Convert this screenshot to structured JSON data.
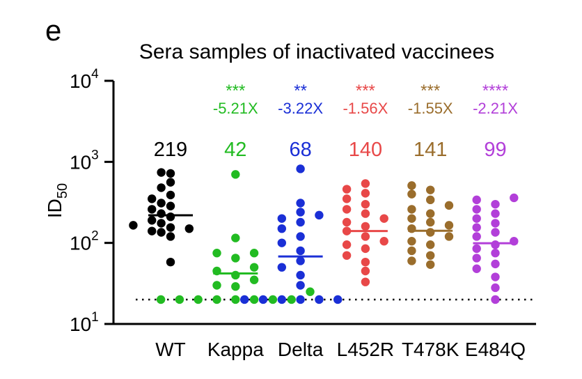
{
  "panel_label": "e",
  "chart_data": {
    "type": "scatter",
    "subtype": "dot-plot with geometric mean lines",
    "title": "Sera samples of inactivated vaccinees",
    "ylabel": "ID50",
    "ylabel_main": "ID",
    "ylabel_sub": "50",
    "yscale": "log",
    "ylim": [
      10,
      10000
    ],
    "yticks": [
      {
        "value": 10,
        "base": "10",
        "exp": "1"
      },
      {
        "value": 100,
        "base": "10",
        "exp": "2"
      },
      {
        "value": 1000,
        "base": "10",
        "exp": "3"
      },
      {
        "value": 10000,
        "base": "10",
        "exp": "4"
      }
    ],
    "detection_limit": 20,
    "categories": [
      "WT",
      "Kappa",
      "Delta",
      "L452R",
      "T478K",
      "E484Q"
    ],
    "series": [
      {
        "name": "WT",
        "color": "#000000",
        "mean_label": "219",
        "mean": 219,
        "significance": "",
        "fold_change": "",
        "points": [
          58,
          120,
          135,
          140,
          150,
          155,
          165,
          175,
          190,
          210,
          230,
          260,
          285,
          310,
          350,
          390,
          480,
          560,
          720,
          740
        ]
      },
      {
        "name": "Kappa",
        "color": "#22bb22",
        "mean_label": "42",
        "mean": 42,
        "significance": "***",
        "fold_change": "-5.21X",
        "points": [
          20,
          20,
          20,
          20,
          20,
          20,
          20,
          20,
          25,
          29,
          30,
          35,
          40,
          45,
          50,
          65,
          75,
          75,
          115,
          700
        ]
      },
      {
        "name": "Delta",
        "color": "#1a2fd6",
        "mean_label": "68",
        "mean": 68,
        "significance": "**",
        "fold_change": "-3.22X",
        "points": [
          20,
          20,
          20,
          20,
          20,
          20,
          30,
          40,
          50,
          60,
          80,
          100,
          120,
          150,
          180,
          200,
          220,
          240,
          310,
          820
        ]
      },
      {
        "name": "L452R",
        "color": "#e84848",
        "mean_label": "140",
        "mean": 140,
        "significance": "***",
        "fold_change": "-1.56X",
        "points": [
          33,
          45,
          58,
          70,
          85,
          95,
          105,
          120,
          140,
          160,
          180,
          200,
          230,
          260,
          300,
          350,
          410,
          460,
          540
        ]
      },
      {
        "name": "T478K",
        "color": "#9a6d2c",
        "mean_label": "141",
        "mean": 141,
        "significance": "***",
        "fold_change": "-1.55X",
        "points": [
          54,
          60,
          70,
          80,
          95,
          105,
          120,
          135,
          150,
          165,
          180,
          200,
          230,
          260,
          290,
          340,
          400,
          450,
          510
        ]
      },
      {
        "name": "E484Q",
        "color": "#b23fd9",
        "mean_label": "99",
        "mean": 99,
        "significance": "****",
        "fold_change": "-2.21X",
        "points": [
          20,
          28,
          38,
          48,
          55,
          65,
          75,
          85,
          95,
          105,
          120,
          135,
          155,
          175,
          200,
          230,
          260,
          300,
          340,
          360
        ]
      }
    ]
  }
}
